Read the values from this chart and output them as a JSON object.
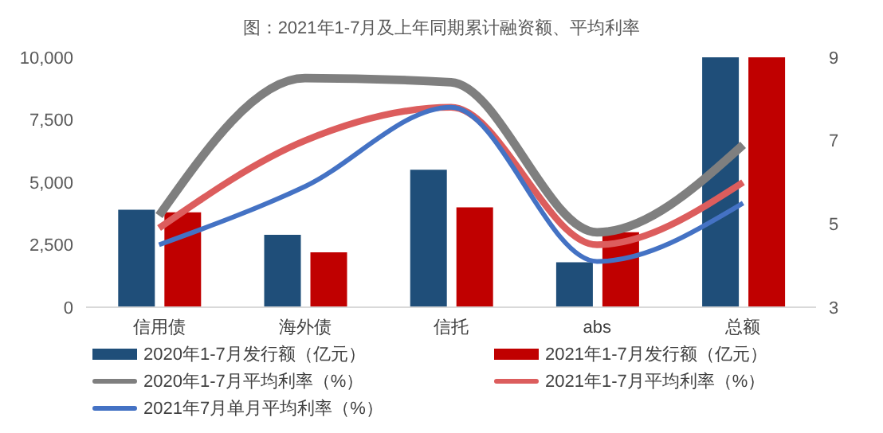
{
  "chart_data": {
    "type": "bar",
    "title": "图：2021年1-7月及上年同期累计融资额、平均利率",
    "categories": [
      "信用债",
      "海外债",
      "信托",
      "abs",
      "总额"
    ],
    "series": [
      {
        "name": "2020年1-7月发行额（亿元）",
        "color": "#1f4e79",
        "values": [
          3900,
          2900,
          5500,
          1800,
          10000
        ]
      },
      {
        "name": "2021年1-7月发行额（亿元）",
        "color": "#c00000",
        "values": [
          3800,
          2200,
          4000,
          3000,
          10000
        ]
      },
      {
        "name": "2020年1-7月平均利率（%）",
        "type": "line",
        "axis": "y2",
        "color": "#7f7f7f",
        "values": [
          5.2,
          8.5,
          8.4,
          4.8,
          6.9
        ]
      },
      {
        "name": "2021年1-7月平均利率（%）",
        "type": "line",
        "axis": "y2",
        "color": "#dc5d5d",
        "values": [
          4.9,
          7.0,
          7.8,
          4.5,
          6.0
        ]
      },
      {
        "name": "2021年7月单月平均利率（%）",
        "type": "line",
        "axis": "y2",
        "color": "#4472c4",
        "values": [
          4.5,
          5.9,
          7.8,
          4.1,
          5.5
        ]
      }
    ],
    "ylim": [
      0,
      10000
    ],
    "yticks": [
      {
        "value": 0,
        "label": "0"
      },
      {
        "value": 2500,
        "label": "2,500"
      },
      {
        "value": 5000,
        "label": "5,000"
      },
      {
        "value": 7500,
        "label": "7,500"
      },
      {
        "value": 10000,
        "label": "10,000"
      }
    ],
    "y2lim": [
      3,
      9
    ],
    "y2ticks": [
      3,
      5,
      7,
      9
    ],
    "legend": "bottom",
    "marker": "none",
    "line_style": "solid"
  }
}
